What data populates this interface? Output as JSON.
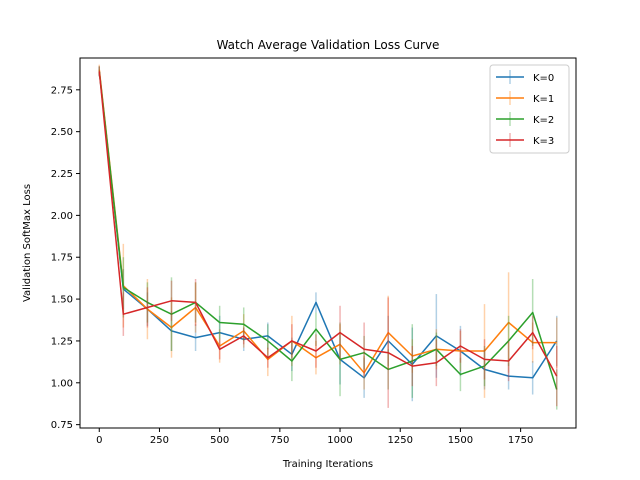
{
  "chart_data": {
    "type": "line",
    "title": "Watch Average Validation Loss Curve",
    "xlabel": "Training Iterations",
    "ylabel": "Validation SoftMax Loss",
    "xlim": [
      -80,
      1980
    ],
    "ylim": [
      0.73,
      2.94
    ],
    "xticks": [
      0,
      250,
      500,
      750,
      1000,
      1250,
      1500,
      1750
    ],
    "yticks": [
      0.75,
      1.0,
      1.25,
      1.5,
      1.75,
      2.0,
      2.25,
      2.5,
      2.75
    ],
    "ytick_labels": [
      "0.75",
      "1.00",
      "1.25",
      "1.50",
      "1.75",
      "2.00",
      "2.25",
      "2.50",
      "2.75"
    ],
    "grid": false,
    "legend_position": "top-right",
    "x": [
      0,
      100,
      200,
      300,
      400,
      500,
      600,
      700,
      800,
      900,
      1000,
      1100,
      1200,
      1300,
      1400,
      1500,
      1600,
      1700,
      1800,
      1900
    ],
    "series": [
      {
        "name": "K=0",
        "color": "#1f77b4",
        "values": [
          2.86,
          1.56,
          1.44,
          1.31,
          1.27,
          1.3,
          1.26,
          1.28,
          1.17,
          1.48,
          1.14,
          1.03,
          1.25,
          1.11,
          1.28,
          1.19,
          1.08,
          1.04,
          1.03,
          1.25
        ],
        "errors": [
          0.03,
          0.12,
          0.1,
          0.12,
          0.08,
          0.1,
          0.07,
          0.08,
          0.1,
          0.06,
          0.15,
          0.12,
          0.15,
          0.22,
          0.25,
          0.15,
          0.12,
          0.08,
          0.1,
          0.15
        ]
      },
      {
        "name": "K=1",
        "color": "#ff7f0e",
        "values": [
          2.87,
          1.58,
          1.44,
          1.33,
          1.45,
          1.22,
          1.31,
          1.14,
          1.25,
          1.15,
          1.23,
          1.06,
          1.3,
          1.16,
          1.2,
          1.19,
          1.19,
          1.36,
          1.24,
          1.24
        ],
        "errors": [
          0.03,
          0.25,
          0.18,
          0.18,
          0.15,
          0.1,
          0.1,
          0.1,
          0.15,
          0.1,
          0.12,
          0.1,
          0.22,
          0.1,
          0.12,
          0.12,
          0.28,
          0.3,
          0.12,
          0.15
        ]
      },
      {
        "name": "K=2",
        "color": "#2ca02c",
        "values": [
          2.86,
          1.57,
          1.48,
          1.41,
          1.48,
          1.36,
          1.35,
          1.25,
          1.13,
          1.32,
          1.14,
          1.18,
          1.08,
          1.13,
          1.2,
          1.05,
          1.1,
          1.25,
          1.42,
          0.96
        ],
        "errors": [
          0.03,
          0.18,
          0.12,
          0.22,
          0.12,
          0.1,
          0.1,
          0.1,
          0.12,
          0.1,
          0.22,
          0.1,
          0.12,
          0.22,
          0.1,
          0.1,
          0.12,
          0.15,
          0.2,
          0.12
        ]
      },
      {
        "name": "K=3",
        "color": "#d62728",
        "values": [
          2.86,
          1.41,
          1.45,
          1.49,
          1.48,
          1.2,
          1.28,
          1.15,
          1.25,
          1.19,
          1.3,
          1.2,
          1.18,
          1.1,
          1.12,
          1.22,
          1.14,
          1.13,
          1.3,
          1.04
        ],
        "errors": [
          0.03,
          0.13,
          0.12,
          0.12,
          0.14,
          0.06,
          0.05,
          0.06,
          0.1,
          0.1,
          0.16,
          0.16,
          0.33,
          0.12,
          0.14,
          0.1,
          0.12,
          0.12,
          0.1,
          0.18
        ]
      }
    ]
  }
}
